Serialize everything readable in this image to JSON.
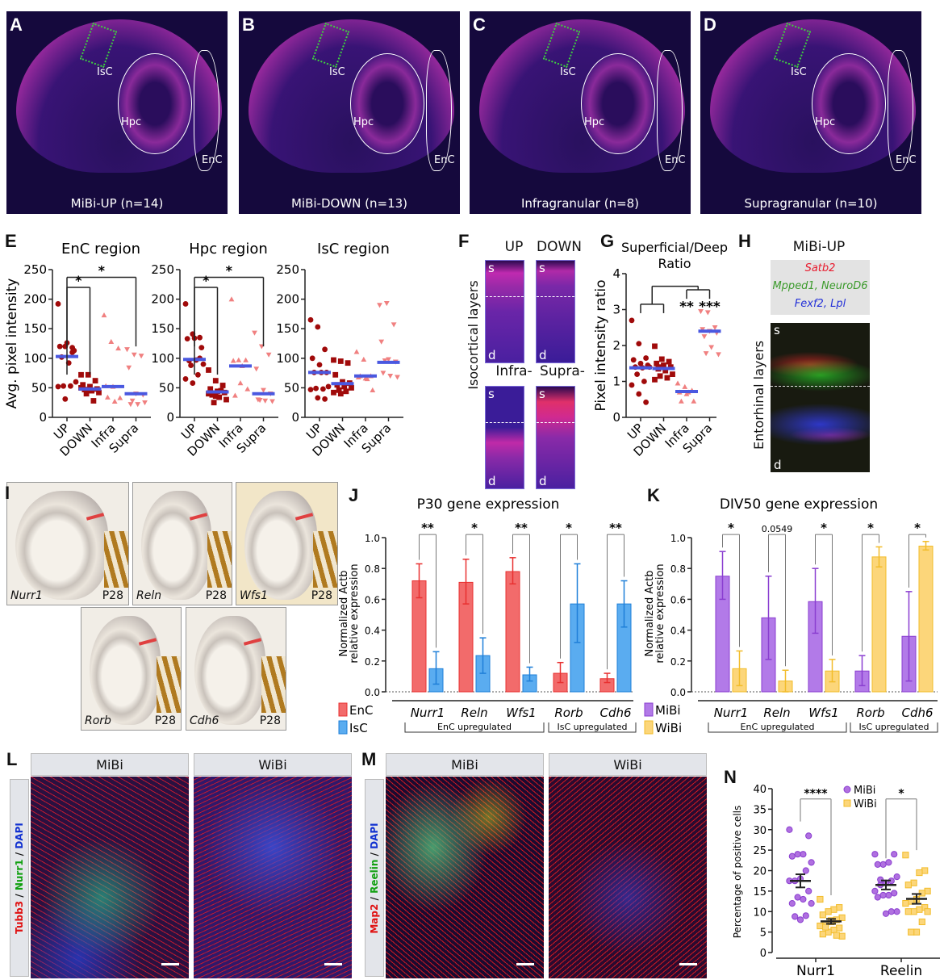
{
  "panel_letters": [
    "A",
    "B",
    "C",
    "D",
    "E",
    "F",
    "G",
    "H",
    "I",
    "J",
    "K",
    "L",
    "M",
    "N"
  ],
  "brains": [
    {
      "caption": "MiBi-UP (n=14)"
    },
    {
      "caption": "MiBi-DOWN (n=13)"
    },
    {
      "caption": "Infragranular (n=8)"
    },
    {
      "caption": "Supragranular (n=10)"
    }
  ],
  "regions": {
    "isc": "IsC",
    "hpc": "Hpc",
    "enc": "EnC"
  },
  "panel_f": {
    "headers": [
      "UP",
      "DOWN",
      "Infra-",
      "Supra-"
    ],
    "side_label": "Isocortical layers",
    "s": "s",
    "d": "d"
  },
  "panel_h": {
    "title": "MiBi-UP",
    "genes": [
      {
        "text": "Satb2",
        "color": "#e8192c"
      },
      {
        "text": "Mpped1, NeuroD6",
        "color": "#3a9a2a"
      },
      {
        "text": "Fexf2, Lpl",
        "color": "#2330d8"
      }
    ],
    "side_label": "Entorhinal layers",
    "s": "s",
    "d": "d"
  },
  "panel_i": [
    {
      "gene": "Nurr1",
      "age": "P28"
    },
    {
      "gene": "Reln",
      "age": "P28"
    },
    {
      "gene": "Wfs1",
      "age": "P28"
    },
    {
      "gene": "Rorb",
      "age": "P28"
    },
    {
      "gene": "Cdh6",
      "age": "P28"
    }
  ],
  "panel_l": {
    "headers": [
      "MiBi",
      "WiBi"
    ],
    "stain": [
      {
        "text": "Tubb3",
        "color": "#e01010"
      },
      {
        "text": " / ",
        "color": "#111"
      },
      {
        "text": "Nurr1",
        "color": "#10a010"
      },
      {
        "text": " / ",
        "color": "#111"
      },
      {
        "text": "DAPI",
        "color": "#1030d0"
      }
    ]
  },
  "panel_m": {
    "headers": [
      "MiBi",
      "WiBi"
    ],
    "stain": [
      {
        "text": "Map2",
        "color": "#e01010"
      },
      {
        "text": " / ",
        "color": "#111"
      },
      {
        "text": "Reelin",
        "color": "#10a010"
      },
      {
        "text": " / ",
        "color": "#111"
      },
      {
        "text": "DAPI",
        "color": "#1030d0"
      }
    ]
  },
  "chart_data": [
    {
      "id": "E1",
      "type": "scatter",
      "title": "EnC region",
      "ylabel": "Avg. pixel intensity",
      "ylim": [
        0,
        250
      ],
      "yticks": [
        0,
        50,
        100,
        150,
        200,
        250
      ],
      "categories": [
        "UP",
        "DOWN",
        "Infra",
        "Supra"
      ],
      "series": [
        [
          192,
          120,
          118,
          120,
          126,
          113,
          102,
          92,
          60,
          53,
          53,
          52,
          31,
          110
        ],
        [
          72,
          72,
          62,
          55,
          52,
          48,
          47,
          45,
          42,
          40,
          28,
          50,
          46
        ],
        [
          173,
          128,
          117,
          53,
          52,
          33,
          34,
          27
        ],
        [
          115,
          106,
          104,
          84,
          40,
          38,
          22,
          22,
          25,
          28
        ]
      ],
      "centers": [
        103,
        48,
        52,
        40
      ],
      "sig": [
        {
          "from": 0,
          "to": 1,
          "label": "*"
        },
        {
          "from": 0,
          "to": 3,
          "label": "*"
        }
      ]
    },
    {
      "id": "E2",
      "type": "scatter",
      "title": "Hpc region",
      "ylabel": "",
      "ylim": [
        0,
        250
      ],
      "yticks": [
        0,
        50,
        100,
        150,
        200,
        250
      ],
      "categories": [
        "UP",
        "DOWN",
        "Infra",
        "Supra"
      ],
      "series": [
        [
          192,
          141,
          135,
          133,
          134,
          118,
          96,
          97,
          90,
          88,
          72,
          65,
          58,
          100
        ],
        [
          80,
          62,
          54,
          48,
          44,
          42,
          38,
          34,
          30,
          25,
          45,
          40,
          36
        ],
        [
          200,
          97,
          97,
          96,
          58,
          48,
          37,
          87
        ],
        [
          143,
          120,
          106,
          82,
          46,
          40,
          30,
          28,
          27,
          29
        ]
      ],
      "centers": [
        98,
        43,
        87,
        40
      ],
      "sig": [
        {
          "from": 0,
          "to": 1,
          "label": "*"
        },
        {
          "from": 0,
          "to": 3,
          "label": "*"
        }
      ]
    },
    {
      "id": "E3",
      "type": "scatter",
      "title": "IsC region",
      "ylabel": "",
      "ylim": [
        0,
        250
      ],
      "yticks": [
        0,
        50,
        100,
        150,
        200,
        250
      ],
      "categories": [
        "UP",
        "DOWN",
        "Infra",
        "Supra"
      ],
      "series": [
        [
          165,
          153,
          115,
          100,
          89,
          76,
          76,
          76,
          52,
          49,
          48,
          47,
          33,
          31
        ],
        [
          97,
          95,
          92,
          72,
          60,
          58,
          55,
          52,
          50,
          46,
          44,
          42,
          40
        ],
        [
          111,
          98,
          70,
          68,
          66,
          46,
          70,
          65
        ],
        [
          190,
          193,
          157,
          128,
          98,
          94,
          75,
          70,
          68,
          96
        ]
      ],
      "centers": [
        76,
        57,
        70,
        93
      ],
      "sig": []
    },
    {
      "id": "G",
      "type": "scatter",
      "title": "Superficial/Deep",
      "title2": "Ratio",
      "ylabel": "Pixel intensity ratio",
      "ylim": [
        0,
        4
      ],
      "yticks": [
        0,
        1,
        2,
        3,
        4
      ],
      "categories": [
        "UP",
        "DOWN",
        "Infra",
        "Supra"
      ],
      "series": [
        [
          2.7,
          2.05,
          1.65,
          1.6,
          1.5,
          1.45,
          1.4,
          1.38,
          1.4,
          1.2,
          1.0,
          0.9,
          0.65,
          0.42
        ],
        [
          1.98,
          1.62,
          1.55,
          1.5,
          1.45,
          1.4,
          1.35,
          1.3,
          1.2,
          1.15,
          1.1,
          1.05,
          1.4
        ],
        [
          0.95,
          0.85,
          0.75,
          0.7,
          0.65,
          0.45,
          0.45,
          0.7
        ],
        [
          2.95,
          2.92,
          2.5,
          2.45,
          2.4,
          2.35,
          2.25,
          1.95,
          1.75,
          1.78
        ]
      ],
      "centers": [
        1.38,
        1.36,
        0.72,
        2.4
      ],
      "sig_labels": [
        "**",
        "***"
      ]
    },
    {
      "id": "J",
      "type": "bar",
      "title": "P30 gene expression",
      "ylabel": "Normalized Actb",
      "ylabel2": "relative expression",
      "ylim": [
        0,
        1
      ],
      "yticks": [
        "0.0",
        "0.2",
        "0.4",
        "0.6",
        "0.8",
        "1.0"
      ],
      "categories": [
        "Nurr1",
        "Reln",
        "Wfs1",
        "Rorb",
        "Cdh6"
      ],
      "series": [
        {
          "name": "EnC",
          "color": "#f26b6b",
          "edge": "#e83030",
          "values": [
            0.72,
            0.71,
            0.78,
            0.12,
            0.085
          ],
          "err": [
            [
              0.61,
              0.83
            ],
            [
              0.57,
              0.86
            ],
            [
              0.7,
              0.87
            ],
            [
              0.06,
              0.19
            ],
            [
              0.06,
              0.12
            ]
          ]
        },
        {
          "name": "IsC",
          "color": "#5aacf0",
          "edge": "#1e7fd8",
          "values": [
            0.15,
            0.235,
            0.11,
            0.57,
            0.57
          ],
          "err": [
            [
              0.05,
              0.26
            ],
            [
              0.12,
              0.35
            ],
            [
              0.07,
              0.16
            ],
            [
              0.32,
              0.83
            ],
            [
              0.42,
              0.72
            ]
          ]
        }
      ],
      "sig": [
        "**",
        "*",
        "**",
        "*",
        "**"
      ],
      "groups": [
        "EnC upregulated",
        "IsC upregulated"
      ]
    },
    {
      "id": "K",
      "type": "bar",
      "title": "DIV50 gene expression",
      "ylabel": "Normalized Actb",
      "ylabel2": "relative expression",
      "ylim": [
        0,
        1
      ],
      "yticks": [
        "0.0",
        "0.2",
        "0.4",
        "0.6",
        "0.8",
        "1.0"
      ],
      "categories": [
        "Nurr1",
        "Reln",
        "Wfs1",
        "Rorb",
        "Cdh6"
      ],
      "series": [
        {
          "name": "MiBi",
          "color": "#b27ae8",
          "edge": "#8a3ed0",
          "values": [
            0.75,
            0.48,
            0.585,
            0.135,
            0.36
          ],
          "err": [
            [
              0.6,
              0.91
            ],
            [
              0.21,
              0.75
            ],
            [
              0.38,
              0.8
            ],
            [
              0.04,
              0.235
            ],
            [
              0.07,
              0.65
            ]
          ]
        },
        {
          "name": "WiBi",
          "color": "#fcd67a",
          "edge": "#f2bc2a",
          "values": [
            0.15,
            0.07,
            0.135,
            0.875,
            0.945
          ],
          "err": [
            [
              0.04,
              0.265
            ],
            [
              0.0,
              0.14
            ],
            [
              0.065,
              0.21
            ],
            [
              0.81,
              0.94
            ],
            [
              0.92,
              0.975
            ]
          ]
        }
      ],
      "sig": [
        "*",
        "0.0549",
        "*",
        "*",
        "*"
      ],
      "groups": [
        "EnC upregulated",
        "IsC upregulated"
      ]
    },
    {
      "id": "N",
      "type": "scatter",
      "title": "",
      "ylabel": "Percentage of positive cells",
      "ylim": [
        0,
        40
      ],
      "yticks": [
        0,
        5,
        10,
        15,
        20,
        25,
        30,
        35,
        40
      ],
      "categories": [
        "Nurr1",
        "Reelin"
      ],
      "legend": [
        "MiBi",
        "WiBi"
      ],
      "series": [
        {
          "name": "MiBi",
          "values": [
            [
              30,
              28.5,
              24,
              24,
              23.5,
              22,
              20,
              18,
              17.5,
              17.5,
              15,
              13,
              13.5,
              12,
              12,
              9,
              8,
              8.8
            ],
            [
              24,
              24,
              22,
              21.5,
              21.5,
              18.5,
              17.5,
              17,
              16.5,
              15,
              14.5,
              14,
              14,
              13.5,
              10,
              10,
              9.5,
              17.8
            ]
          ]
        },
        {
          "name": "WiBi",
          "values": [
            [
              13,
              11,
              10.5,
              10,
              9.2,
              8.5,
              8,
              7.5,
              7,
              6.5,
              6,
              5.5,
              5,
              4.5,
              4,
              4.2,
              7.8,
              6.2
            ],
            [
              23.8,
              20,
              19.5,
              17,
              16.5,
              15,
              14.5,
              13,
              12.5,
              12,
              11,
              10.5,
              10,
              10,
              10,
              7.5,
              5,
              5
            ]
          ]
        }
      ],
      "mean_sem": [
        [
          [
            17.5,
            1.6
          ],
          [
            16.5,
            1.1
          ]
        ],
        [
          [
            7.6,
            0.6
          ],
          [
            13.1,
            1.2
          ]
        ]
      ],
      "sig": [
        "****",
        "*"
      ]
    }
  ]
}
